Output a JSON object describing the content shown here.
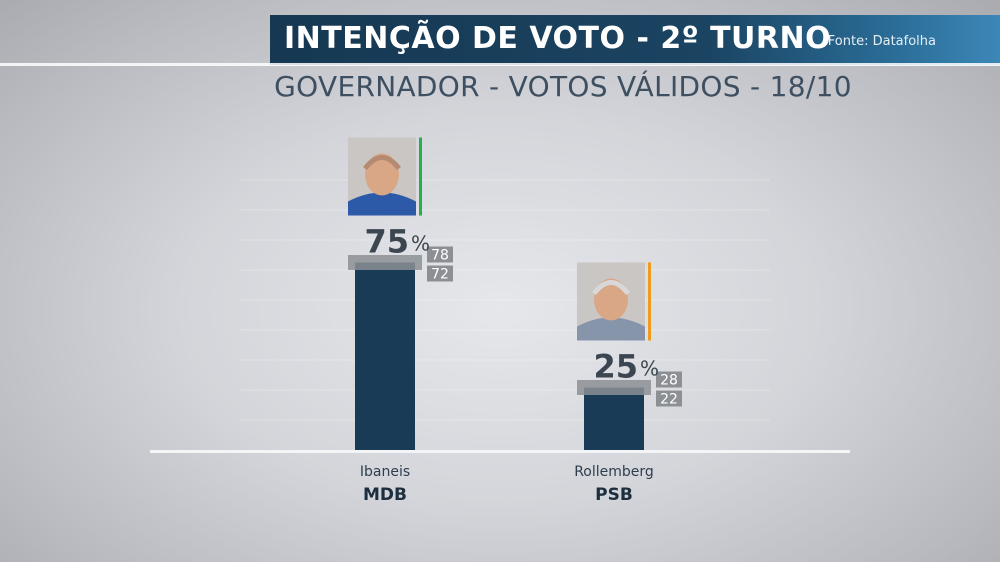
{
  "header": {
    "title": "INTENÇÃO DE VOTO - 2º TURNO",
    "source": "Fonte: Datafolha"
  },
  "subtitle": "GOVERNADOR - VOTOS VÁLIDOS - 18/10",
  "colors": {
    "bar": "#1a3b55",
    "banner": "#163852",
    "margin_box": "#8c9095"
  },
  "chart_data": {
    "type": "bar",
    "title": "INTENÇÃO DE VOTO - 2º TURNO",
    "subtitle": "GOVERNADOR - VOTOS VÁLIDOS - 18/10",
    "ylim": [
      0,
      100
    ],
    "value_suffix": "%",
    "categories": [
      "Ibaneis",
      "Rollemberg"
    ],
    "values": [
      75,
      25
    ],
    "candidates": [
      {
        "name": "Ibaneis",
        "party": "MDB",
        "value": 75,
        "upper": 78,
        "lower": 72,
        "accent": "#22b14c",
        "photo": "ibaneis-photo"
      },
      {
        "name": "Rollemberg",
        "party": "PSB",
        "value": 25,
        "upper": 28,
        "lower": 22,
        "accent": "#f29a1b",
        "photo": "rollemberg-photo"
      }
    ]
  }
}
